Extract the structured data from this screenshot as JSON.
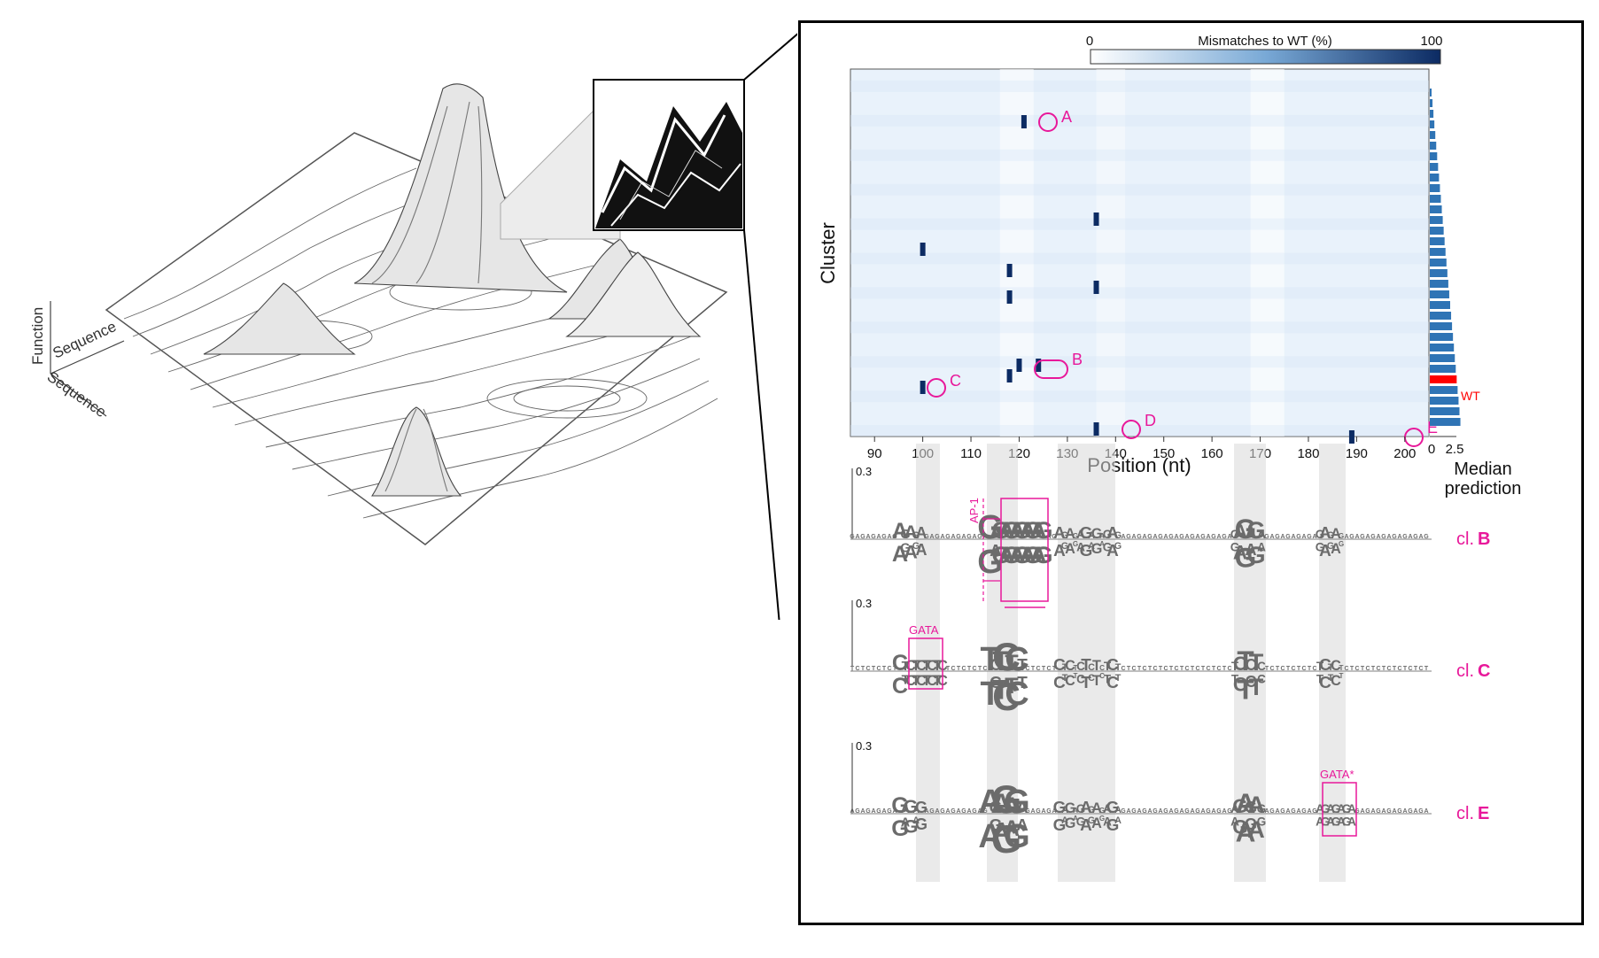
{
  "landscape": {
    "axis_function": "Function",
    "axis_sequence_1": "Sequence",
    "axis_sequence_2": "Sequence"
  },
  "heatmap": {
    "colorbar_title": "Mismatches to WT (%)",
    "colorbar_min": "0",
    "colorbar_max": "100",
    "y_label": "Cluster",
    "x_label": "Position (nt)",
    "x_ticks": [
      "90",
      "100",
      "110",
      "120",
      "130",
      "140",
      "150",
      "160",
      "170",
      "180",
      "190",
      "200"
    ],
    "bar_ticks": [
      "0",
      "2.5"
    ],
    "bar_label_1": "Median",
    "bar_label_2": "prediction",
    "wt_label": "WT",
    "callouts": [
      "A",
      "B",
      "C",
      "D",
      "E"
    ],
    "colors": {
      "heat_low": "#eef5fc",
      "heat_high": "#0c2b63",
      "bar": "#2f74b5",
      "wt_bar": "#ff0000",
      "highlight": "#e8189a"
    }
  },
  "logos": {
    "scale_label": "0.3",
    "rows": [
      {
        "cluster_label": "cl.",
        "cluster_letter": "B",
        "motif": "AP-1"
      },
      {
        "cluster_label": "cl.",
        "cluster_letter": "C",
        "motif": "GATA"
      },
      {
        "cluster_label": "cl.",
        "cluster_letter": "E",
        "motif": "GATA*"
      }
    ],
    "colors": {
      "orange": "#f39c1e",
      "gray": "#6b6b6b"
    }
  }
}
